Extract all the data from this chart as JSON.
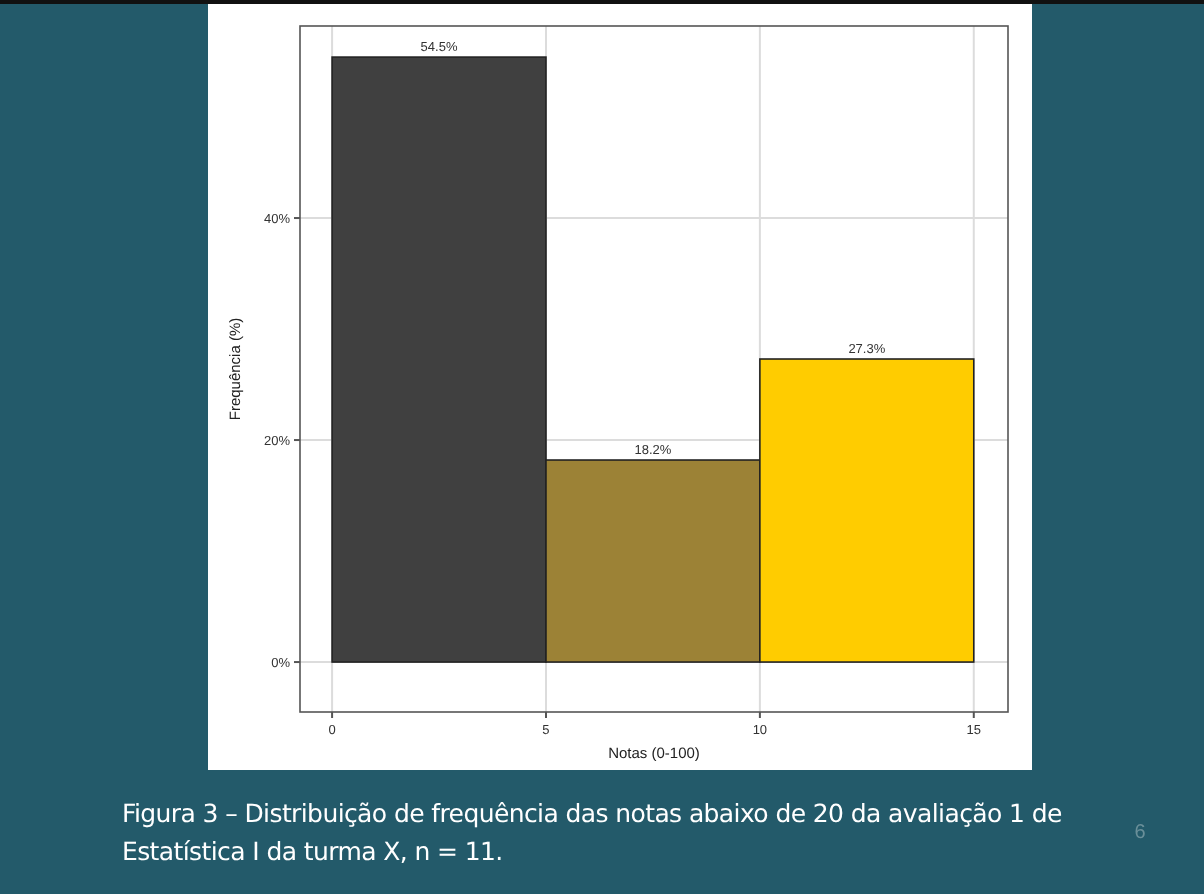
{
  "chart_data": {
    "type": "histogram",
    "xlabel": "Notas (0-100)",
    "ylabel": "Frequência (%)",
    "bins": [
      0,
      5,
      10,
      15
    ],
    "values": [
      54.5,
      18.2,
      27.3
    ],
    "colors": [
      "#404040",
      "#9c8236",
      "#ffcc00"
    ],
    "value_labels": [
      "54.5%",
      "18.2%",
      "27.3%"
    ],
    "xlim": [
      -0.75,
      15.8
    ],
    "xticks": [
      0,
      5,
      10,
      15
    ],
    "ylim": [
      -4.5,
      57.3
    ],
    "yticks": [
      {
        "value": 0,
        "label": "0%"
      },
      {
        "value": 20,
        "label": "20%"
      },
      {
        "value": 40,
        "label": "40%"
      }
    ],
    "grid": true,
    "annotations": [
      "Figura 3 – Distribuição de frequência das notas abaixo de 20 da avaliação 1 de Estatística I da turma X, n = 11.",
      "6"
    ]
  }
}
